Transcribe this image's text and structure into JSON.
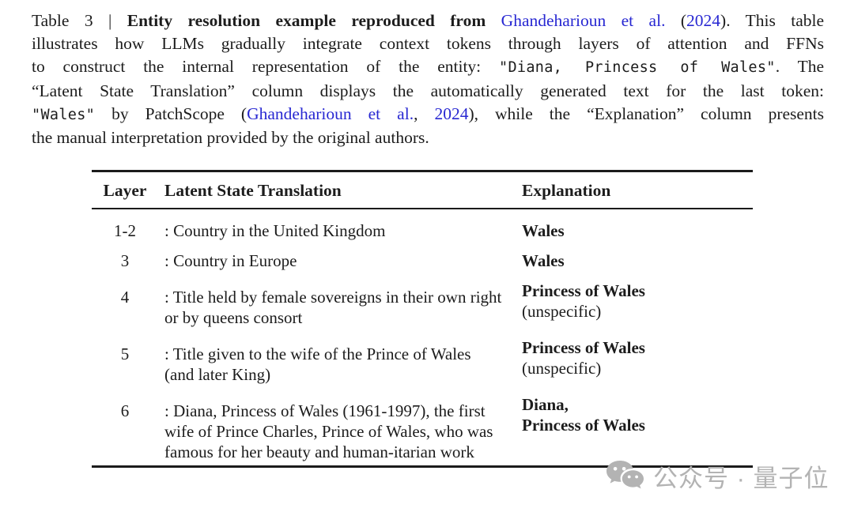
{
  "page": {
    "background": "#ffffff",
    "text_color": "#1c1c1c",
    "link_color": "#2828d2",
    "rule_color": "#1b1b1b",
    "watermark_color": "#b3b3b3"
  },
  "caption": {
    "lines": [
      {
        "justify": true,
        "segments": [
          {
            "style": "plain",
            "text": "Table 3 | "
          },
          {
            "style": "bold",
            "text": "Entity resolution example reproduced from"
          },
          {
            "style": "plain",
            "text": " "
          },
          {
            "style": "link",
            "text": "Ghandeharioun et al."
          },
          {
            "style": "plain",
            "text": " ("
          },
          {
            "style": "link",
            "text": "2024"
          },
          {
            "style": "plain",
            "text": "). This table"
          }
        ]
      },
      {
        "justify": true,
        "segments": [
          {
            "style": "plain",
            "text": "illustrates how LLMs gradually integrate context tokens through layers of attention and FFNs"
          }
        ]
      },
      {
        "justify": true,
        "segments": [
          {
            "style": "plain",
            "text": "to construct the internal representation of the entity: "
          },
          {
            "style": "mono",
            "text": "\"Diana, Princess of Wales\""
          },
          {
            "style": "plain",
            "text": ". The"
          }
        ]
      },
      {
        "justify": true,
        "segments": [
          {
            "style": "plain",
            "text": "“Latent State Translation” column displays the automatically generated text for the last token:"
          }
        ]
      },
      {
        "justify": true,
        "segments": [
          {
            "style": "mono",
            "text": "\"Wales\""
          },
          {
            "style": "plain",
            "text": " by PatchScope ("
          },
          {
            "style": "link",
            "text": "Ghandeharioun et al."
          },
          {
            "style": "plain",
            "text": ", "
          },
          {
            "style": "link",
            "text": "2024"
          },
          {
            "style": "plain",
            "text": "), while the “Explanation” column presents"
          }
        ]
      },
      {
        "justify": false,
        "segments": [
          {
            "style": "plain",
            "text": "the manual interpretation provided by the original authors."
          }
        ]
      }
    ]
  },
  "table": {
    "headers": [
      "Layer",
      "Latent State Translation",
      "Explanation"
    ],
    "rows": [
      {
        "layer": "1-2",
        "latent": ": Country in the United Kingdom",
        "explanation_bold_lines": [
          "Wales"
        ],
        "explanation_note": ""
      },
      {
        "layer": "3",
        "latent": ": Country in Europe",
        "explanation_bold_lines": [
          "Wales"
        ],
        "explanation_note": ""
      },
      {
        "layer": "4",
        "latent": ": Title held by female sovereigns in their own right or by queens consort",
        "explanation_bold_lines": [
          "Princess of Wales"
        ],
        "explanation_note": "(unspecific)"
      },
      {
        "layer": "5",
        "latent": ": Title given to the wife of the Prince of Wales (and later King)",
        "explanation_bold_lines": [
          "Princess of Wales"
        ],
        "explanation_note": "(unspecific)"
      },
      {
        "layer": "6",
        "latent": ": Diana, Princess of Wales (1961-1997), the first wife of Prince Charles, Prince of Wales, who was famous for her beauty and human-itarian work",
        "explanation_bold_lines": [
          "Diana,",
          "Princess of Wales"
        ],
        "explanation_note": ""
      }
    ]
  },
  "watermark": {
    "icon": "wechat-icon",
    "text": "公众号 · 量子位"
  }
}
